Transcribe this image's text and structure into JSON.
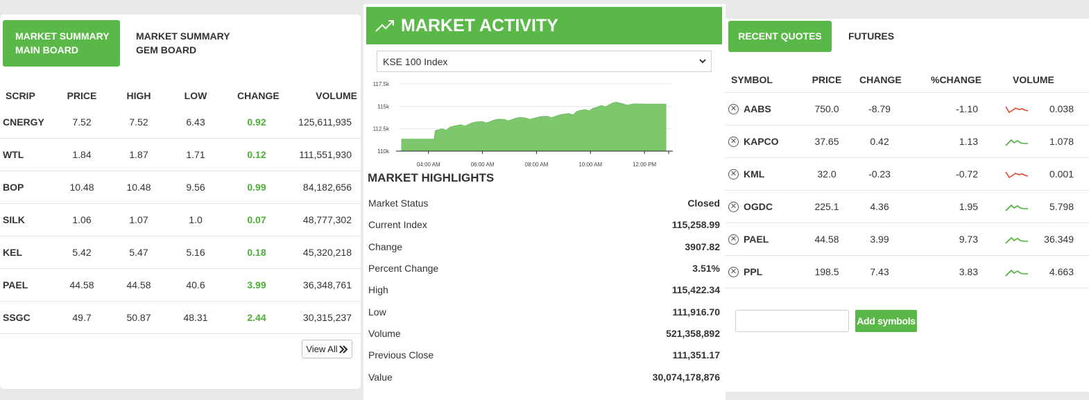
{
  "left": {
    "tabs": [
      {
        "line1": "MARKET SUMMARY",
        "line2": "MAIN BOARD"
      },
      {
        "line1": "MARKET SUMMARY",
        "line2": "GEM BOARD"
      }
    ],
    "columns": [
      "SCRIP",
      "PRICE",
      "HIGH",
      "LOW",
      "CHANGE",
      "VOLUME"
    ],
    "rows": [
      {
        "scrip": "CNERGY",
        "price": "7.52",
        "high": "7.52",
        "low": "6.43",
        "change": "0.92",
        "volume": "125,611,935"
      },
      {
        "scrip": "WTL",
        "price": "1.84",
        "high": "1.87",
        "low": "1.71",
        "change": "0.12",
        "volume": "111,551,930"
      },
      {
        "scrip": "BOP",
        "price": "10.48",
        "high": "10.48",
        "low": "9.56",
        "change": "0.99",
        "volume": "84,182,656"
      },
      {
        "scrip": "SILK",
        "price": "1.06",
        "high": "1.07",
        "low": "1.0",
        "change": "0.07",
        "volume": "48,777,302"
      },
      {
        "scrip": "KEL",
        "price": "5.42",
        "high": "5.47",
        "low": "5.16",
        "change": "0.18",
        "volume": "45,320,218"
      },
      {
        "scrip": "PAEL",
        "price": "44.58",
        "high": "44.58",
        "low": "40.6",
        "change": "3.99",
        "volume": "36,348,761"
      },
      {
        "scrip": "SSGC",
        "price": "49.7",
        "high": "50.87",
        "low": "48.31",
        "change": "2.44",
        "volume": "30,315,237"
      }
    ],
    "view_all": "View All"
  },
  "center": {
    "title": "MARKET ACTIVITY",
    "title_icon": "trending-up-icon",
    "index_select": "KSE 100 Index",
    "highlights_title": "MARKET HIGHLIGHTS",
    "highlights": [
      {
        "label": "Market Status",
        "value": "Closed"
      },
      {
        "label": "Current Index",
        "value": "115,258.99"
      },
      {
        "label": "Change",
        "value": "3907.82"
      },
      {
        "label": "Percent Change",
        "value": "3.51%"
      },
      {
        "label": "High",
        "value": "115,422.34"
      },
      {
        "label": "Low",
        "value": "111,916.70"
      },
      {
        "label": "Volume",
        "value": "521,358,892"
      },
      {
        "label": "Previous Close",
        "value": "111,351.17"
      },
      {
        "label": "Value",
        "value": "30,074,178,876"
      }
    ]
  },
  "chart_data": {
    "type": "area",
    "title": "",
    "xlabel": "",
    "ylabel": "",
    "x_ticks": [
      "04:00 AM",
      "06:00 AM",
      "08:00 AM",
      "10:00 AM",
      "12:00 PM"
    ],
    "y_ticks": [
      "110k",
      "112.5k",
      "115k",
      "117.5k"
    ],
    "ylim": [
      110000,
      117500
    ],
    "xlim_hours": [
      2.9,
      13.0
    ],
    "x_hours": [
      3.0,
      4.2,
      4.25,
      4.5,
      4.8,
      5.2,
      5.6,
      6.0,
      6.4,
      6.8,
      7.2,
      7.6,
      8.0,
      8.4,
      8.8,
      9.2,
      9.5,
      9.8,
      10.1,
      10.4,
      10.8,
      11.2,
      11.6,
      12.0,
      12.4,
      12.8
    ],
    "y_values": [
      111350,
      111350,
      112300,
      112500,
      112700,
      112950,
      113150,
      113300,
      113450,
      113550,
      113650,
      113700,
      113750,
      113900,
      114000,
      114200,
      114450,
      114650,
      114800,
      115100,
      115350,
      115300,
      115280,
      115260,
      115259,
      115259
    ],
    "color": "#7dc76d",
    "grid": true
  },
  "right": {
    "tabs": [
      "RECENT QUOTES",
      "FUTURES"
    ],
    "columns": [
      "SYMBOL",
      "PRICE",
      "CHANGE",
      "%CHANGE",
      "VOLUME"
    ],
    "rows": [
      {
        "symbol": "AABS",
        "price": "750.0",
        "change": "-8.79",
        "pchange": "-1.10",
        "trend": "down",
        "volume": "0.038"
      },
      {
        "symbol": "KAPCO",
        "price": "37.65",
        "change": "0.42",
        "pchange": "1.13",
        "trend": "up",
        "volume": "1.078"
      },
      {
        "symbol": "KML",
        "price": "32.0",
        "change": "-0.23",
        "pchange": "-0.72",
        "trend": "down",
        "volume": "0.001"
      },
      {
        "symbol": "OGDC",
        "price": "225.1",
        "change": "4.36",
        "pchange": "1.95",
        "trend": "up",
        "volume": "5.798"
      },
      {
        "symbol": "PAEL",
        "price": "44.58",
        "change": "3.99",
        "pchange": "9.73",
        "trend": "up",
        "volume": "36.349"
      },
      {
        "symbol": "PPL",
        "price": "198.5",
        "change": "7.43",
        "pchange": "3.83",
        "trend": "up",
        "volume": "4.663"
      }
    ],
    "input_value": "",
    "add_button": "Add symbols",
    "up_color": "#4cae35",
    "down_color": "#e0462f"
  }
}
